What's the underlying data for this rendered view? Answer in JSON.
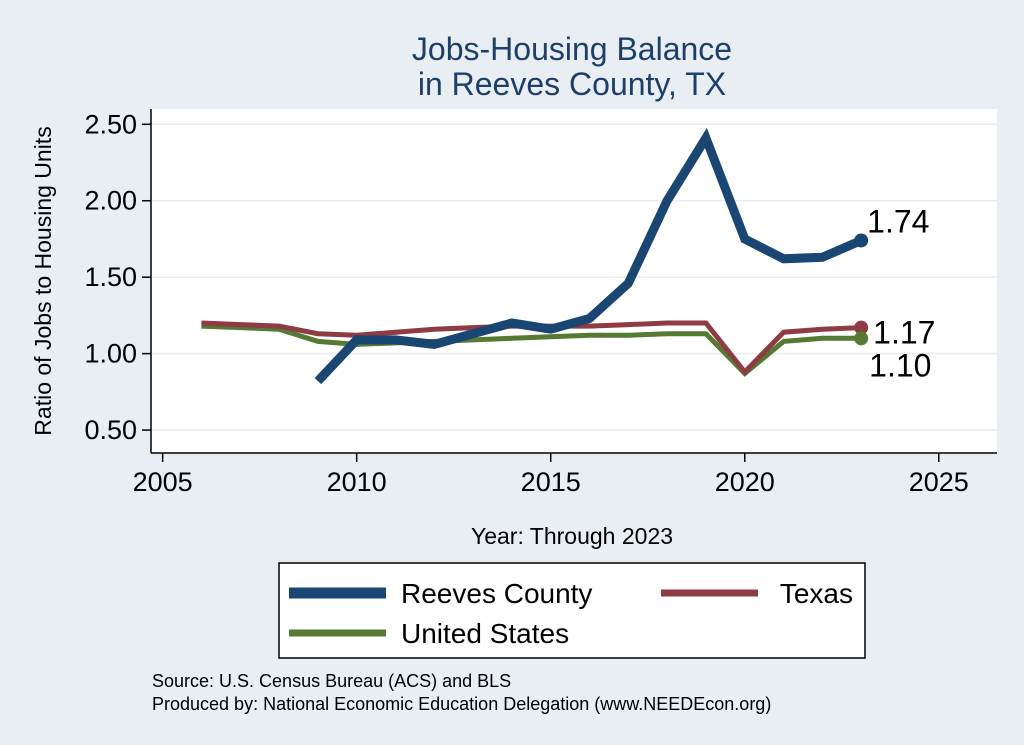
{
  "chart_data": {
    "type": "line",
    "title": "Jobs-Housing Balance",
    "subtitle": "in Reeves County, TX",
    "xlabel": "Year: Through 2023",
    "ylabel": "Ratio of Jobs to Housing Units",
    "xlim": [
      2004.7,
      2026.5
    ],
    "ylim": [
      0.35,
      2.6
    ],
    "xticks": [
      2005,
      2010,
      2015,
      2020,
      2025
    ],
    "xtick_labels": [
      "2005",
      "2010",
      "2015",
      "2020",
      "2025"
    ],
    "yticks": [
      0.5,
      1.0,
      1.5,
      2.0,
      2.5
    ],
    "ytick_labels": [
      "0.50",
      "1.00",
      "1.50",
      "2.00",
      "2.50"
    ],
    "grid": true,
    "legend_position": "bottom",
    "series": [
      {
        "name": "Reeves County",
        "color": "#1a4673",
        "x": [
          2009,
          2010,
          2011,
          2012,
          2013,
          2014,
          2015,
          2016,
          2017,
          2018,
          2019,
          2020,
          2021,
          2022,
          2023
        ],
        "values": [
          0.82,
          1.09,
          1.09,
          1.06,
          1.13,
          1.2,
          1.16,
          1.23,
          1.46,
          2.0,
          2.41,
          1.75,
          1.62,
          1.63,
          1.74
        ],
        "end_label": "1.74"
      },
      {
        "name": "Texas",
        "color": "#8e3b43",
        "x": [
          2006,
          2007,
          2008,
          2009,
          2010,
          2011,
          2012,
          2013,
          2014,
          2015,
          2016,
          2017,
          2018,
          2019,
          2020,
          2021,
          2022,
          2023
        ],
        "values": [
          1.2,
          1.19,
          1.18,
          1.13,
          1.12,
          1.14,
          1.16,
          1.17,
          1.18,
          1.18,
          1.18,
          1.19,
          1.2,
          1.2,
          0.88,
          1.14,
          1.16,
          1.17
        ],
        "end_label": "1.17"
      },
      {
        "name": "United States",
        "color": "#557a32",
        "x": [
          2006,
          2007,
          2008,
          2009,
          2010,
          2011,
          2012,
          2013,
          2014,
          2015,
          2016,
          2017,
          2018,
          2019,
          2020,
          2021,
          2022,
          2023
        ],
        "values": [
          1.18,
          1.17,
          1.16,
          1.08,
          1.06,
          1.07,
          1.08,
          1.09,
          1.1,
          1.11,
          1.12,
          1.12,
          1.13,
          1.13,
          0.87,
          1.08,
          1.1,
          1.1
        ],
        "end_label": "1.10"
      }
    ]
  },
  "notes": {
    "source": "Source: U.S. Census Bureau (ACS) and BLS",
    "produced_by": "Produced by: National Economic Education Delegation (www.NEEDEcon.org)"
  }
}
